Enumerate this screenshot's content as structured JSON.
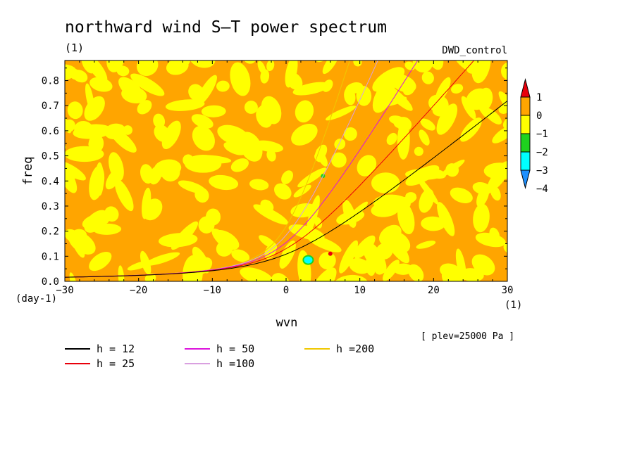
{
  "chart_data": {
    "type": "heatmap",
    "title": "northward wind S–T power spectrum",
    "units_label": "(1)",
    "run_label": "DWD_control",
    "plev_label": "[ plev=25000 Pa ]",
    "xlabel": "wvn",
    "x_unit": "(1)",
    "ylabel": "freq",
    "y_unit": "(day-1)",
    "xlim": [
      -30,
      30
    ],
    "ylim": [
      0.0,
      0.88
    ],
    "xticks": [
      "−30",
      "−20",
      "−10",
      "0",
      "10",
      "20",
      "30"
    ],
    "yticks": [
      "0.0",
      "0.1",
      "0.2",
      "0.3",
      "0.4",
      "0.5",
      "0.6",
      "0.7",
      "0.8"
    ],
    "xtick_values": [
      -30,
      -20,
      -10,
      0,
      10,
      20,
      30
    ],
    "ytick_values": [
      0.0,
      0.1,
      0.2,
      0.3,
      0.4,
      0.5,
      0.6,
      0.7,
      0.8
    ],
    "field_levels": {
      "labels": [
        "1",
        "0",
        "−1",
        "−2",
        "−3",
        "−4"
      ],
      "colors": [
        "#e8000b",
        "#ffa500",
        "#ffff00",
        "#1ed21e",
        "#00ffff",
        "#1e90ff"
      ]
    },
    "field_patches": [
      {
        "x": 3.0,
        "y": 0.085,
        "level": -3
      },
      {
        "x": 5.0,
        "y": 0.42,
        "level": -2
      },
      {
        "x": 6.0,
        "y": 0.11,
        "level": 1
      }
    ],
    "dispersion_curves": [
      {
        "label": "h = 12",
        "h": 12,
        "color": "#000000"
      },
      {
        "label": "h = 25",
        "h": 25,
        "color": "#e8000b"
      },
      {
        "label": "h = 50",
        "h": 50,
        "color": "#dc14dc"
      },
      {
        "label": "h =100",
        "h": 100,
        "color": "#d9a0e0"
      },
      {
        "label": "h =200",
        "h": 200,
        "color": "#f0c800"
      }
    ]
  }
}
